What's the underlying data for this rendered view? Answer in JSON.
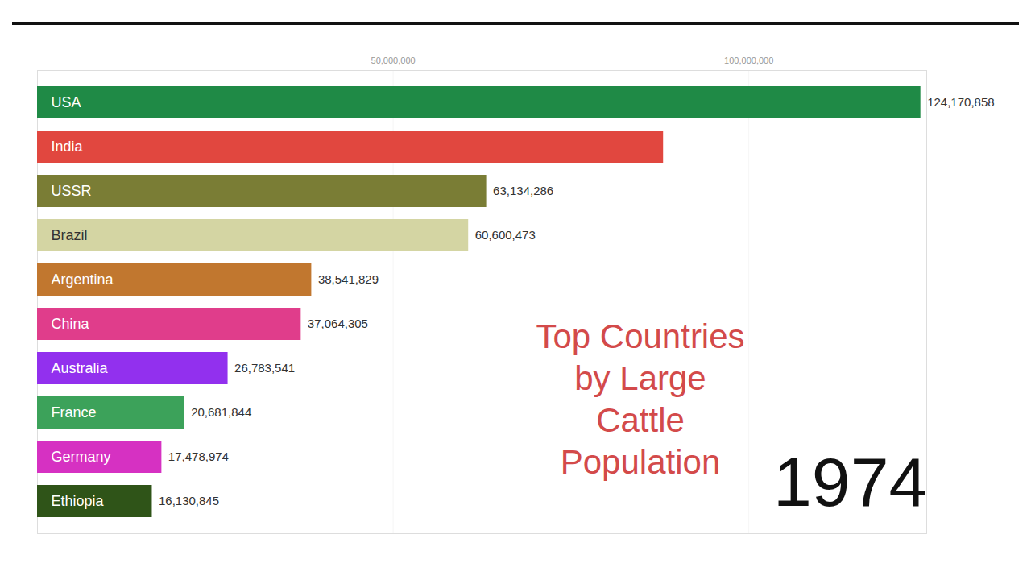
{
  "chart_data": {
    "type": "bar",
    "orientation": "horizontal",
    "title": "Top Countries by Large Cattle Population",
    "annotations": [
      "1974"
    ],
    "categories": [
      "USA",
      "India",
      "USSR",
      "Brazil",
      "Argentina",
      "China",
      "Australia",
      "France",
      "Germany",
      "Ethiopia"
    ],
    "values": [
      124170858,
      88000000,
      63134286,
      60600473,
      38541829,
      37064305,
      26783541,
      20681844,
      17478974,
      16130845
    ],
    "value_labels": [
      "124,170,858",
      null,
      "63,134,286",
      "60,600,473",
      "38,541,829",
      "37,064,305",
      "26,783,541",
      "20,681,844",
      "17,478,974",
      "16,130,845"
    ],
    "colors": [
      "#1f8a46",
      "#e1473f",
      "#7a7d35",
      "#d4d5a3",
      "#c1772f",
      "#e03d8b",
      "#9230ee",
      "#3ca25a",
      "#d631c2",
      "#2f5418"
    ],
    "xlim": [
      0,
      125000000
    ],
    "xticks": [
      {
        "value": 50000000,
        "label": "50,000,000"
      },
      {
        "value": 100000000,
        "label": "100,000,000"
      }
    ],
    "grid": true,
    "data_labels": true,
    "tick_labels": "x"
  }
}
